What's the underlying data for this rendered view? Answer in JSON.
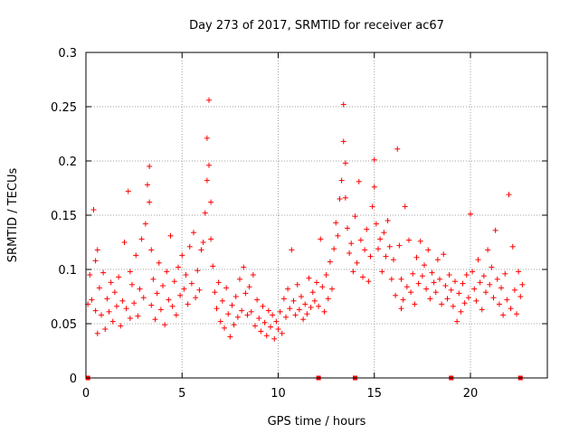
{
  "chart_data": {
    "type": "scatter",
    "title": "Day 273 of 2017, SRMTID for receiver ac67",
    "xlabel": "GPS time / hours",
    "ylabel": "SRMTID / TECUs",
    "xlim": [
      0,
      24
    ],
    "ylim": [
      0,
      0.3
    ],
    "xticks": [
      0,
      5,
      10,
      15,
      20
    ],
    "xtick_labels": [
      "0",
      "5",
      "10",
      "15",
      "20"
    ],
    "yticks": [
      0,
      0.05,
      0.1,
      0.15,
      0.2,
      0.25,
      0.3
    ],
    "ytick_labels": [
      "0",
      "0.05",
      "0.1",
      "0.15",
      "0.2",
      "0.25",
      "0.3"
    ],
    "grid": true,
    "marker": "plus",
    "color": "#ff0000",
    "series": [
      {
        "name": "SRMTID",
        "x": [
          0.1,
          0.2,
          0.3,
          0.4,
          0.5,
          0.5,
          0.6,
          0.6,
          0.7,
          0.8,
          0.9,
          1.0,
          1.1,
          1.2,
          1.3,
          1.4,
          1.5,
          1.6,
          1.7,
          1.8,
          1.9,
          2.0,
          2.1,
          2.2,
          2.3,
          2.3,
          2.4,
          2.5,
          2.6,
          2.7,
          2.8,
          2.9,
          3.0,
          3.1,
          3.2,
          3.3,
          3.3,
          3.4,
          3.4,
          3.5,
          3.6,
          3.7,
          3.8,
          3.9,
          4.0,
          4.1,
          4.2,
          4.3,
          4.4,
          4.5,
          4.6,
          4.7,
          4.8,
          4.9,
          5.0,
          5.1,
          5.2,
          5.3,
          5.4,
          5.5,
          5.6,
          5.7,
          5.8,
          5.9,
          6.0,
          6.1,
          6.2,
          6.3,
          6.3,
          6.4,
          6.4,
          6.5,
          6.5,
          6.6,
          6.7,
          6.8,
          6.9,
          7.0,
          7.1,
          7.2,
          7.3,
          7.4,
          7.5,
          7.6,
          7.7,
          7.8,
          7.9,
          8.0,
          8.1,
          8.2,
          8.3,
          8.4,
          8.5,
          8.6,
          8.7,
          8.8,
          8.9,
          9.0,
          9.1,
          9.2,
          9.3,
          9.4,
          9.5,
          9.6,
          9.7,
          9.8,
          9.9,
          10.0,
          10.1,
          10.2,
          10.3,
          10.4,
          10.5,
          10.6,
          10.7,
          10.8,
          10.9,
          11.0,
          11.1,
          11.2,
          11.3,
          11.4,
          11.5,
          11.6,
          11.7,
          11.8,
          11.9,
          12.0,
          12.1,
          12.2,
          12.3,
          12.4,
          12.5,
          12.6,
          12.7,
          12.8,
          12.9,
          13.0,
          13.1,
          13.2,
          13.3,
          13.4,
          13.4,
          13.5,
          13.5,
          13.6,
          13.7,
          13.8,
          13.9,
          14.0,
          14.1,
          14.2,
          14.3,
          14.4,
          14.5,
          14.6,
          14.7,
          14.8,
          14.9,
          15.0,
          15.0,
          15.1,
          15.2,
          15.3,
          15.4,
          15.5,
          15.6,
          15.7,
          15.8,
          15.9,
          16.0,
          16.1,
          16.2,
          16.3,
          16.4,
          16.4,
          16.5,
          16.6,
          16.7,
          16.8,
          16.9,
          17.0,
          17.1,
          17.2,
          17.3,
          17.4,
          17.5,
          17.6,
          17.7,
          17.8,
          17.9,
          18.0,
          18.1,
          18.2,
          18.3,
          18.4,
          18.5,
          18.6,
          18.7,
          18.8,
          18.9,
          19.0,
          19.1,
          19.2,
          19.3,
          19.4,
          19.5,
          19.6,
          19.7,
          19.8,
          19.9,
          20.0,
          20.1,
          20.2,
          20.3,
          20.4,
          20.5,
          20.6,
          20.7,
          20.8,
          20.9,
          21.0,
          21.1,
          21.2,
          21.3,
          21.4,
          21.5,
          21.6,
          21.7,
          21.8,
          21.9,
          22.0,
          22.1,
          22.2,
          22.3,
          22.4,
          22.5,
          22.6,
          22.7
        ],
        "y": [
          0.068,
          0.095,
          0.072,
          0.155,
          0.108,
          0.062,
          0.118,
          0.041,
          0.083,
          0.058,
          0.097,
          0.045,
          0.073,
          0.061,
          0.088,
          0.052,
          0.079,
          0.066,
          0.093,
          0.048,
          0.071,
          0.125,
          0.064,
          0.172,
          0.098,
          0.055,
          0.086,
          0.069,
          0.113,
          0.057,
          0.082,
          0.128,
          0.074,
          0.142,
          0.178,
          0.195,
          0.162,
          0.118,
          0.067,
          0.091,
          0.054,
          0.078,
          0.106,
          0.063,
          0.085,
          0.049,
          0.098,
          0.072,
          0.131,
          0.066,
          0.089,
          0.058,
          0.102,
          0.076,
          0.113,
          0.082,
          0.095,
          0.068,
          0.121,
          0.087,
          0.134,
          0.074,
          0.099,
          0.081,
          0.118,
          0.125,
          0.152,
          0.182,
          0.221,
          0.256,
          0.196,
          0.162,
          0.128,
          0.103,
          0.079,
          0.064,
          0.088,
          0.052,
          0.071,
          0.046,
          0.083,
          0.059,
          0.038,
          0.067,
          0.049,
          0.075,
          0.056,
          0.091,
          0.062,
          0.102,
          0.078,
          0.058,
          0.084,
          0.061,
          0.095,
          0.048,
          0.072,
          0.055,
          0.043,
          0.066,
          0.051,
          0.039,
          0.062,
          0.047,
          0.058,
          0.036,
          0.052,
          0.045,
          0.061,
          0.041,
          0.073,
          0.056,
          0.082,
          0.064,
          0.118,
          0.071,
          0.058,
          0.086,
          0.063,
          0.075,
          0.054,
          0.068,
          0.059,
          0.092,
          0.065,
          0.079,
          0.071,
          0.088,
          0.066,
          0.128,
          0.084,
          0.061,
          0.095,
          0.073,
          0.107,
          0.082,
          0.119,
          0.143,
          0.131,
          0.165,
          0.182,
          0.218,
          0.252,
          0.198,
          0.166,
          0.138,
          0.115,
          0.124,
          0.098,
          0.149,
          0.106,
          0.181,
          0.127,
          0.093,
          0.118,
          0.137,
          0.089,
          0.112,
          0.158,
          0.201,
          0.176,
          0.142,
          0.119,
          0.128,
          0.098,
          0.134,
          0.112,
          0.145,
          0.121,
          0.091,
          0.109,
          0.076,
          0.211,
          0.122,
          0.064,
          0.091,
          0.072,
          0.158,
          0.084,
          0.127,
          0.079,
          0.096,
          0.068,
          0.111,
          0.087,
          0.126,
          0.094,
          0.104,
          0.082,
          0.118,
          0.073,
          0.097,
          0.088,
          0.079,
          0.109,
          0.091,
          0.068,
          0.114,
          0.085,
          0.073,
          0.095,
          0.081,
          0.066,
          0.089,
          0.052,
          0.078,
          0.061,
          0.087,
          0.069,
          0.095,
          0.074,
          0.151,
          0.098,
          0.082,
          0.071,
          0.109,
          0.088,
          0.063,
          0.094,
          0.079,
          0.118,
          0.086,
          0.102,
          0.074,
          0.136,
          0.091,
          0.068,
          0.083,
          0.058,
          0.096,
          0.072,
          0.169,
          0.064,
          0.121,
          0.081,
          0.059,
          0.098,
          0.075,
          0.086
        ]
      }
    ],
    "data_gaps_x": [
      0.1,
      12.1,
      14.0,
      19.0,
      22.6
    ]
  }
}
